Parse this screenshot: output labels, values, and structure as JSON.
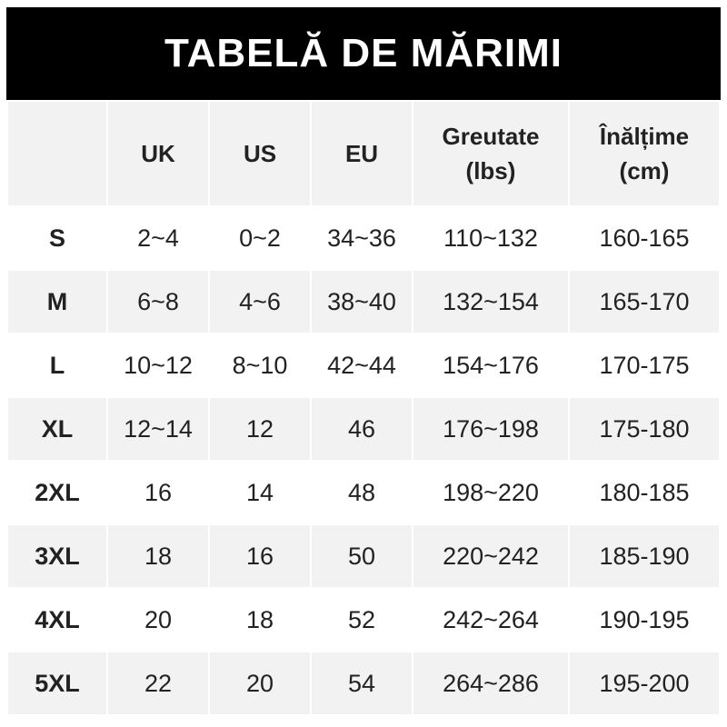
{
  "title": "TABELĂ DE MĂRIMI",
  "headers": [
    "",
    "UK",
    "US",
    "EU",
    "Greutate\n(lbs)",
    "Înălțime\n(cm)"
  ],
  "rows": [
    [
      "S",
      "2~4",
      "0~2",
      "34~36",
      "110~132",
      "160-165"
    ],
    [
      "M",
      "6~8",
      "4~6",
      "38~40",
      "132~154",
      "165-170"
    ],
    [
      "L",
      "10~12",
      "8~10",
      "42~44",
      "154~176",
      "170-175"
    ],
    [
      "XL",
      "12~14",
      "12",
      "46",
      "176~198",
      "175-180"
    ],
    [
      "2XL",
      "16",
      "14",
      "48",
      "198~220",
      "180-185"
    ],
    [
      "3XL",
      "18",
      "16",
      "50",
      "220~242",
      "185-190"
    ],
    [
      "4XL",
      "20",
      "18",
      "52",
      "242~264",
      "190-195"
    ],
    [
      "5XL",
      "22",
      "20",
      "54",
      "264~286",
      "195-200"
    ]
  ]
}
